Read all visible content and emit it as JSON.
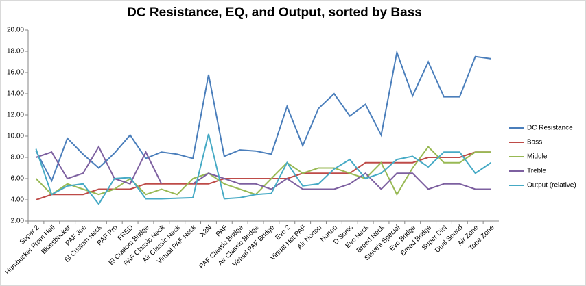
{
  "chart_data": {
    "type": "line",
    "title": "DC Resistance, EQ, and Output, sorted by Bass",
    "categories": [
      "Super 2",
      "Humbucker From Hell",
      "Bluesbucker",
      "PAF Joe",
      "El Custom Neck",
      "PAF Pro",
      "FRED",
      "El Custom Bridge",
      "PAF Classic Neck",
      "Air Classic Neck",
      "Virtual PAF Neck",
      "X2N",
      "PAF",
      "PAF Classic Bridge",
      "Air Classic Bridge",
      "Virtual PAF Bridge",
      "Evo 2",
      "Virtual Hot PAF",
      "Air Norton",
      "Norton",
      "D Sonic",
      "Evo Neck",
      "Breed Neck",
      "Steve's Special",
      "Evo Bridge",
      "Breed Bridge",
      "Super Dist",
      "Dual Sound",
      "Air Zone",
      "Tone Zone"
    ],
    "series": [
      {
        "name": "DC Resistance",
        "color": "#4a7ebb",
        "values": [
          8.6,
          5.8,
          9.8,
          8.3,
          7.0,
          8.4,
          10.1,
          7.9,
          8.5,
          8.3,
          7.9,
          15.8,
          8.1,
          8.7,
          8.6,
          8.3,
          12.8,
          9.1,
          12.6,
          14.0,
          11.9,
          13.0,
          10.1,
          17.9,
          13.8,
          17.0,
          13.7,
          13.7,
          17.5,
          17.3
        ]
      },
      {
        "name": "Bass",
        "color": "#be4b48",
        "values": [
          4.0,
          4.5,
          4.5,
          4.5,
          5.0,
          5.0,
          5.0,
          5.5,
          5.5,
          5.5,
          5.5,
          5.5,
          6.0,
          6.0,
          6.0,
          6.0,
          6.0,
          6.5,
          6.5,
          6.5,
          6.5,
          7.5,
          7.5,
          7.5,
          7.5,
          8.0,
          8.0,
          8.0,
          8.5,
          8.5
        ]
      },
      {
        "name": "Middle",
        "color": "#98b954",
        "values": [
          6.0,
          4.5,
          5.5,
          5.0,
          4.5,
          5.0,
          6.0,
          4.5,
          5.0,
          4.5,
          6.0,
          6.5,
          5.5,
          5.0,
          4.5,
          6.0,
          7.5,
          6.5,
          7.0,
          7.0,
          6.5,
          6.0,
          7.5,
          4.5,
          7.0,
          9.0,
          7.5,
          7.5,
          8.5,
          8.5
        ]
      },
      {
        "name": "Treble",
        "color": "#7d60a0",
        "values": [
          8.0,
          8.5,
          6.0,
          6.5,
          9.0,
          6.0,
          5.5,
          8.5,
          5.5,
          null,
          5.5,
          6.5,
          6.0,
          5.5,
          5.5,
          5.0,
          6.0,
          5.0,
          5.0,
          5.0,
          5.5,
          6.5,
          5.0,
          6.5,
          6.5,
          5.0,
          5.5,
          5.5,
          5.0,
          5.0
        ]
      },
      {
        "name": "Output (relative)",
        "color": "#46aac5",
        "values": [
          8.8,
          4.5,
          5.3,
          5.5,
          3.6,
          6.0,
          6.1,
          4.1,
          4.1,
          4.15,
          4.2,
          10.2,
          4.1,
          4.2,
          4.5,
          4.6,
          7.5,
          5.3,
          5.5,
          6.9,
          7.8,
          6.0,
          6.5,
          7.8,
          8.1,
          7.1,
          8.5,
          8.5,
          6.5,
          7.5
        ]
      }
    ],
    "ylim": [
      2,
      20
    ],
    "yticks": [
      {
        "value": 2,
        "label": "2.00"
      },
      {
        "value": 4,
        "label": "4.00"
      },
      {
        "value": 6,
        "label": "6.00"
      },
      {
        "value": 8,
        "label": "8.00"
      },
      {
        "value": 10,
        "label": "10.00"
      },
      {
        "value": 12,
        "label": "12.00"
      },
      {
        "value": 14,
        "label": "14.00"
      },
      {
        "value": 16,
        "label": "16.00"
      },
      {
        "value": 18,
        "label": "18.00"
      },
      {
        "value": 20,
        "label": "20.00"
      }
    ],
    "grid": false,
    "legend": "right"
  }
}
